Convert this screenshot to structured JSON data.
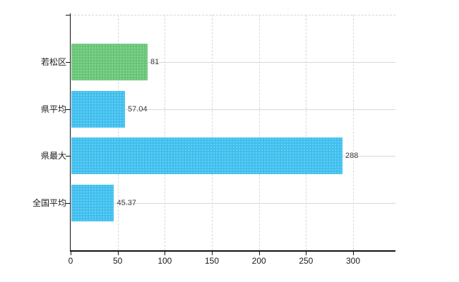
{
  "chart_data": {
    "type": "bar",
    "orientation": "horizontal",
    "title": "",
    "categories": [
      "若松区",
      "県平均",
      "県最大",
      "全国平均"
    ],
    "values": [
      81,
      57.04,
      288,
      45.37
    ],
    "value_labels": [
      "81",
      "57.04",
      "288",
      "45.37"
    ],
    "bar_colors": [
      "#68c577",
      "#3fbfee",
      "#3fbfee",
      "#3fbfee"
    ],
    "x_ticks": [
      0,
      50,
      100,
      150,
      200,
      250,
      300
    ],
    "x_tick_labels": [
      "0",
      "50",
      "100",
      "150",
      "200",
      "250",
      "300"
    ],
    "xlim": [
      0,
      345
    ],
    "grid": {
      "vertical": "dashed",
      "horizontal": "solid",
      "top_border": "dashed"
    },
    "legend": "none",
    "colors": {
      "axis": "#111111",
      "grid_vertical": "#d8d8d8",
      "grid_horizontal": "#d4dad4",
      "value_label_text": "#3c3c3c",
      "axis_label_text": "#1a1a1a",
      "background": "#ffffff"
    }
  }
}
